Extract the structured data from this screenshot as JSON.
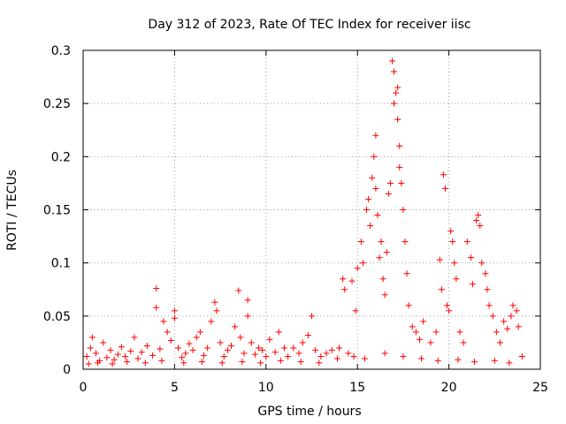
{
  "chart_data": {
    "type": "scatter",
    "title": "Day 312 of 2023, Rate Of TEC Index for receiver iisc",
    "xlabel": "GPS time / hours",
    "ylabel": "ROTI / TECUs",
    "xlim": [
      0,
      25
    ],
    "ylim": [
      0,
      0.3
    ],
    "x_ticks": [
      0,
      5,
      10,
      15,
      20,
      25
    ],
    "y_ticks": [
      0,
      0.05,
      0.1,
      0.15,
      0.2,
      0.25,
      0.3
    ],
    "x_tick_labels": [
      "0",
      "5",
      "10",
      "15",
      "20",
      "25"
    ],
    "y_tick_labels": [
      "0",
      "0.05",
      "0.1",
      "0.15",
      "0.2",
      "0.25",
      "0.3"
    ],
    "grid": true,
    "marker": "+",
    "color": "#ff0000",
    "series": [
      {
        "name": "ROTI",
        "points": [
          [
            0.2,
            0.012
          ],
          [
            0.4,
            0.02
          ],
          [
            0.5,
            0.03
          ],
          [
            0.7,
            0.015
          ],
          [
            0.9,
            0.008
          ],
          [
            1.1,
            0.025
          ],
          [
            1.3,
            0.011
          ],
          [
            1.5,
            0.018
          ],
          [
            1.7,
            0.009
          ],
          [
            1.9,
            0.014
          ],
          [
            2.1,
            0.021
          ],
          [
            2.3,
            0.012
          ],
          [
            2.6,
            0.017
          ],
          [
            2.8,
            0.03
          ],
          [
            3.0,
            0.01
          ],
          [
            3.2,
            0.016
          ],
          [
            3.5,
            0.022
          ],
          [
            3.8,
            0.013
          ],
          [
            4.0,
            0.076
          ],
          [
            4.0,
            0.058
          ],
          [
            4.2,
            0.019
          ],
          [
            4.4,
            0.045
          ],
          [
            4.6,
            0.035
          ],
          [
            4.8,
            0.027
          ],
          [
            5.0,
            0.055
          ],
          [
            5.0,
            0.048
          ],
          [
            5.2,
            0.02
          ],
          [
            5.4,
            0.011
          ],
          [
            5.6,
            0.015
          ],
          [
            5.8,
            0.024
          ],
          [
            6.0,
            0.018
          ],
          [
            6.2,
            0.03
          ],
          [
            6.4,
            0.035
          ],
          [
            6.6,
            0.013
          ],
          [
            6.8,
            0.02
          ],
          [
            7.0,
            0.045
          ],
          [
            7.2,
            0.063
          ],
          [
            7.3,
            0.055
          ],
          [
            7.5,
            0.025
          ],
          [
            7.7,
            0.012
          ],
          [
            7.9,
            0.018
          ],
          [
            8.1,
            0.022
          ],
          [
            8.3,
            0.04
          ],
          [
            8.5,
            0.074
          ],
          [
            8.6,
            0.03
          ],
          [
            8.8,
            0.015
          ],
          [
            9.0,
            0.065
          ],
          [
            9.0,
            0.05
          ],
          [
            9.2,
            0.025
          ],
          [
            9.4,
            0.014
          ],
          [
            9.6,
            0.02
          ],
          [
            9.8,
            0.018
          ],
          [
            10.0,
            0.012
          ],
          [
            10.2,
            0.028
          ],
          [
            10.5,
            0.016
          ],
          [
            10.7,
            0.035
          ],
          [
            11.0,
            0.02
          ],
          [
            11.2,
            0.012
          ],
          [
            11.5,
            0.02
          ],
          [
            11.8,
            0.015
          ],
          [
            12.0,
            0.025
          ],
          [
            12.3,
            0.032
          ],
          [
            12.5,
            0.05
          ],
          [
            12.7,
            0.018
          ],
          [
            13.0,
            0.012
          ],
          [
            13.3,
            0.015
          ],
          [
            13.6,
            0.018
          ],
          [
            14.0,
            0.02
          ],
          [
            14.2,
            0.085
          ],
          [
            14.3,
            0.075
          ],
          [
            14.5,
            0.015
          ],
          [
            14.7,
            0.083
          ],
          [
            14.9,
            0.055
          ],
          [
            15.0,
            0.095
          ],
          [
            15.2,
            0.12
          ],
          [
            15.3,
            0.1
          ],
          [
            15.5,
            0.15
          ],
          [
            15.6,
            0.16
          ],
          [
            15.7,
            0.135
          ],
          [
            15.8,
            0.18
          ],
          [
            15.9,
            0.2
          ],
          [
            16.0,
            0.22
          ],
          [
            16.0,
            0.17
          ],
          [
            16.1,
            0.145
          ],
          [
            16.2,
            0.105
          ],
          [
            16.3,
            0.12
          ],
          [
            16.4,
            0.085
          ],
          [
            16.5,
            0.07
          ],
          [
            16.6,
            0.11
          ],
          [
            16.7,
            0.165
          ],
          [
            16.8,
            0.175
          ],
          [
            16.9,
            0.29
          ],
          [
            17.0,
            0.28
          ],
          [
            17.0,
            0.25
          ],
          [
            17.1,
            0.26
          ],
          [
            17.2,
            0.265
          ],
          [
            17.2,
            0.235
          ],
          [
            17.3,
            0.21
          ],
          [
            17.3,
            0.19
          ],
          [
            17.4,
            0.175
          ],
          [
            17.5,
            0.15
          ],
          [
            17.6,
            0.12
          ],
          [
            17.7,
            0.09
          ],
          [
            17.8,
            0.06
          ],
          [
            18.0,
            0.04
          ],
          [
            18.2,
            0.035
          ],
          [
            18.4,
            0.028
          ],
          [
            18.6,
            0.045
          ],
          [
            19.0,
            0.025
          ],
          [
            19.3,
            0.035
          ],
          [
            19.5,
            0.103
          ],
          [
            19.6,
            0.075
          ],
          [
            19.7,
            0.183
          ],
          [
            19.8,
            0.17
          ],
          [
            19.9,
            0.06
          ],
          [
            20.0,
            0.055
          ],
          [
            20.1,
            0.13
          ],
          [
            20.2,
            0.12
          ],
          [
            20.3,
            0.1
          ],
          [
            20.4,
            0.085
          ],
          [
            20.6,
            0.035
          ],
          [
            20.8,
            0.025
          ],
          [
            21.0,
            0.12
          ],
          [
            21.2,
            0.105
          ],
          [
            21.3,
            0.08
          ],
          [
            21.5,
            0.14
          ],
          [
            21.6,
            0.145
          ],
          [
            21.7,
            0.135
          ],
          [
            21.8,
            0.1
          ],
          [
            22.0,
            0.09
          ],
          [
            22.1,
            0.075
          ],
          [
            22.2,
            0.06
          ],
          [
            22.4,
            0.05
          ],
          [
            22.6,
            0.035
          ],
          [
            22.8,
            0.025
          ],
          [
            23.0,
            0.045
          ],
          [
            23.2,
            0.038
          ],
          [
            23.4,
            0.05
          ],
          [
            23.5,
            0.06
          ],
          [
            23.7,
            0.055
          ],
          [
            23.8,
            0.04
          ],
          [
            24.0,
            0.012
          ],
          [
            0.3,
            0.005
          ],
          [
            0.8,
            0.006
          ],
          [
            1.6,
            0.005
          ],
          [
            2.4,
            0.007
          ],
          [
            3.4,
            0.006
          ],
          [
            4.3,
            0.008
          ],
          [
            5.5,
            0.006
          ],
          [
            6.5,
            0.007
          ],
          [
            7.6,
            0.006
          ],
          [
            8.7,
            0.007
          ],
          [
            9.7,
            0.006
          ],
          [
            10.8,
            0.008
          ],
          [
            11.9,
            0.007
          ],
          [
            12.9,
            0.006
          ],
          [
            13.9,
            0.01
          ],
          [
            14.8,
            0.012
          ],
          [
            15.4,
            0.01
          ],
          [
            16.5,
            0.015
          ],
          [
            17.5,
            0.012
          ],
          [
            18.5,
            0.01
          ],
          [
            19.4,
            0.008
          ],
          [
            20.5,
            0.009
          ],
          [
            21.4,
            0.007
          ],
          [
            22.5,
            0.008
          ],
          [
            23.3,
            0.006
          ]
        ]
      }
    ]
  }
}
